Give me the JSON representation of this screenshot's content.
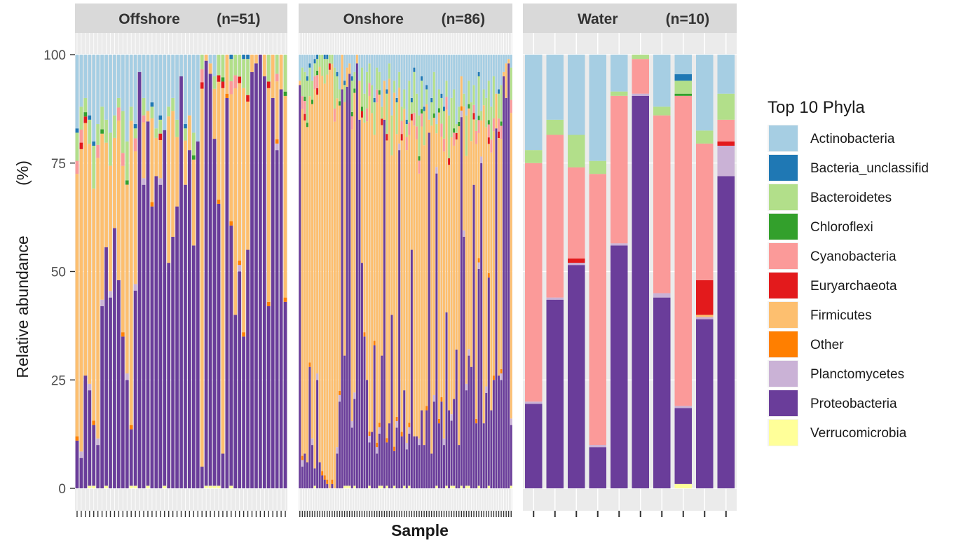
{
  "chart_data": {
    "type": "stacked-bar",
    "title": "",
    "xlabel": "Sample",
    "ylabel": "Relative abundance",
    "ylabel_unit": "(%)",
    "ylim": [
      0,
      100
    ],
    "y_ticks": [
      "0",
      "25",
      "50",
      "75",
      "100"
    ],
    "legend": {
      "title": "Top 10 Phyla",
      "placement": "right",
      "entries": [
        {
          "name": "Actinobacteria",
          "color": "#a6cee3"
        },
        {
          "name": "Bacteria_unclassifid",
          "color": "#1f78b4"
        },
        {
          "name": "Bacteroidetes",
          "color": "#b2df8a"
        },
        {
          "name": "Chloroflexi",
          "color": "#33a02c"
        },
        {
          "name": "Cyanobacteria",
          "color": "#fb9a99"
        },
        {
          "name": "Euryarchaeota",
          "color": "#e31a1c"
        },
        {
          "name": "Firmicutes",
          "color": "#fdbf6f"
        },
        {
          "name": "Other",
          "color": "#ff7f00"
        },
        {
          "name": "Planctomycetes",
          "color": "#cab2d6"
        },
        {
          "name": "Proteobacteria",
          "color": "#6a3d9a"
        },
        {
          "name": "Verrucomicrobia",
          "color": "#ffff99"
        }
      ]
    },
    "facets": [
      {
        "name": "Offshore",
        "n_label": "(n=51)",
        "n_samples": 51,
        "proteobacteria_per_sample": [
          11,
          7,
          26,
          22,
          14,
          10,
          42,
          55,
          44,
          60,
          48,
          35,
          25,
          13,
          45,
          96,
          70,
          84,
          65,
          72,
          70,
          82,
          52,
          58,
          65,
          95,
          70,
          78,
          56,
          80,
          5,
          98,
          95,
          80,
          65,
          8,
          90,
          60,
          40,
          50,
          35,
          55,
          96,
          98,
          100,
          95,
          42,
          90,
          78,
          92,
          43
        ],
        "actinobacteria_per_sample": [
          17,
          12,
          10,
          14,
          20,
          16,
          12,
          15,
          18,
          14,
          10,
          13,
          20,
          12,
          16,
          18,
          10,
          13,
          11,
          17,
          14,
          20,
          12,
          10,
          15,
          12,
          16,
          14,
          18,
          20,
          0,
          0,
          2,
          5,
          0,
          0,
          0,
          0,
          0,
          0,
          0,
          0,
          0,
          0,
          0,
          0,
          0,
          0,
          0,
          0,
          0
        ]
      },
      {
        "name": "Onshore",
        "n_label": "(n=86)",
        "n_samples": 86,
        "proteobacteria_per_sample": [
          93,
          5,
          8,
          6,
          28,
          10,
          4,
          25,
          6,
          3,
          2,
          1,
          0,
          1,
          0,
          8,
          20,
          92,
          30,
          92,
          95,
          14,
          20,
          98,
          85,
          52,
          35,
          25,
          10,
          13,
          33,
          8,
          12,
          30,
          85,
          10,
          15,
          40,
          8,
          14,
          78,
          12,
          22,
          9,
          12,
          55,
          12,
          12,
          10,
          18,
          10,
          18,
          82,
          8,
          20,
          72,
          15,
          20,
          10,
          40,
          18,
          15,
          20,
          32,
          10,
          85,
          58,
          22,
          30,
          28,
          70,
          15,
          50,
          75,
          15,
          22,
          48,
          18,
          25,
          83,
          26,
          25,
          95,
          90,
          98,
          14
        ],
        "actinobacteria_per_sample": [
          6,
          3,
          4,
          5,
          2,
          6,
          1,
          0,
          0,
          0,
          0,
          0,
          0,
          0,
          3,
          4,
          8,
          0,
          6,
          3,
          2,
          5,
          4,
          0,
          6,
          3,
          9,
          4,
          2,
          7,
          10,
          3,
          4,
          12,
          6,
          8,
          2,
          14,
          6,
          10,
          4,
          12,
          8,
          15,
          6,
          10,
          3,
          9,
          14,
          5,
          12,
          7,
          15,
          10,
          4,
          16,
          8,
          9,
          12,
          6,
          14,
          10,
          8,
          16,
          12,
          5,
          9,
          14,
          6,
          11,
          7,
          15,
          4,
          13,
          8,
          10,
          6,
          12,
          5,
          9,
          8,
          7,
          4,
          2,
          1,
          3
        ]
      },
      {
        "name": "Water",
        "n_label": "(n=10)",
        "n_samples": 10,
        "bars": [
          {
            "Actinobacteria": 22,
            "Bacteroidetes": 3,
            "Cyanobacteria": 55,
            "Planctomycetes": 0.5,
            "Proteobacteria": 19.5
          },
          {
            "Actinobacteria": 15,
            "Bacteroidetes": 3.5,
            "Cyanobacteria": 37.5,
            "Planctomycetes": 0.5,
            "Proteobacteria": 43.5
          },
          {
            "Actinobacteria": 18.5,
            "Bacteroidetes": 7.5,
            "Cyanobacteria": 21,
            "Euryarchaeota": 1,
            "Planctomycetes": 0.5,
            "Proteobacteria": 51.5
          },
          {
            "Actinobacteria": 24.5,
            "Bacteroidetes": 3,
            "Cyanobacteria": 62.5,
            "Planctomycetes": 0.5,
            "Proteobacteria": 9.5
          },
          {
            "Actinobacteria": 8.5,
            "Bacteroidetes": 1,
            "Cyanobacteria": 34,
            "Planctomycetes": 0.5,
            "Proteobacteria": 56
          },
          {
            "Actinobacteria": 0,
            "Bacteroidetes": 1,
            "Cyanobacteria": 8,
            "Planctomycetes": 0.5,
            "Proteobacteria": 90.5
          },
          {
            "Actinobacteria": 12,
            "Bacteroidetes": 2,
            "Cyanobacteria": 41,
            "Planctomycetes": 1,
            "Proteobacteria": 44
          },
          {
            "Actinobacteria": 4.5,
            "Bacteria_unclassifid": 1.5,
            "Bacteroidetes": 3,
            "Chloroflexi": 0.5,
            "Cyanobacteria": 71.5,
            "Planctomycetes": 0.5,
            "Proteobacteria": 17.5,
            "Verrucomicrobia": 1
          },
          {
            "Actinobacteria": 17.5,
            "Bacteroidetes": 3,
            "Cyanobacteria": 31.5,
            "Euryarchaeota": 8,
            "Firmicutes": 0.5,
            "Planctomycetes": 0.5,
            "Proteobacteria": 39
          },
          {
            "Actinobacteria": 9,
            "Bacteroidetes": 6,
            "Cyanobacteria": 5,
            "Euryarchaeota": 1,
            "Planctomycetes": 7,
            "Proteobacteria": 72
          }
        ]
      }
    ]
  }
}
